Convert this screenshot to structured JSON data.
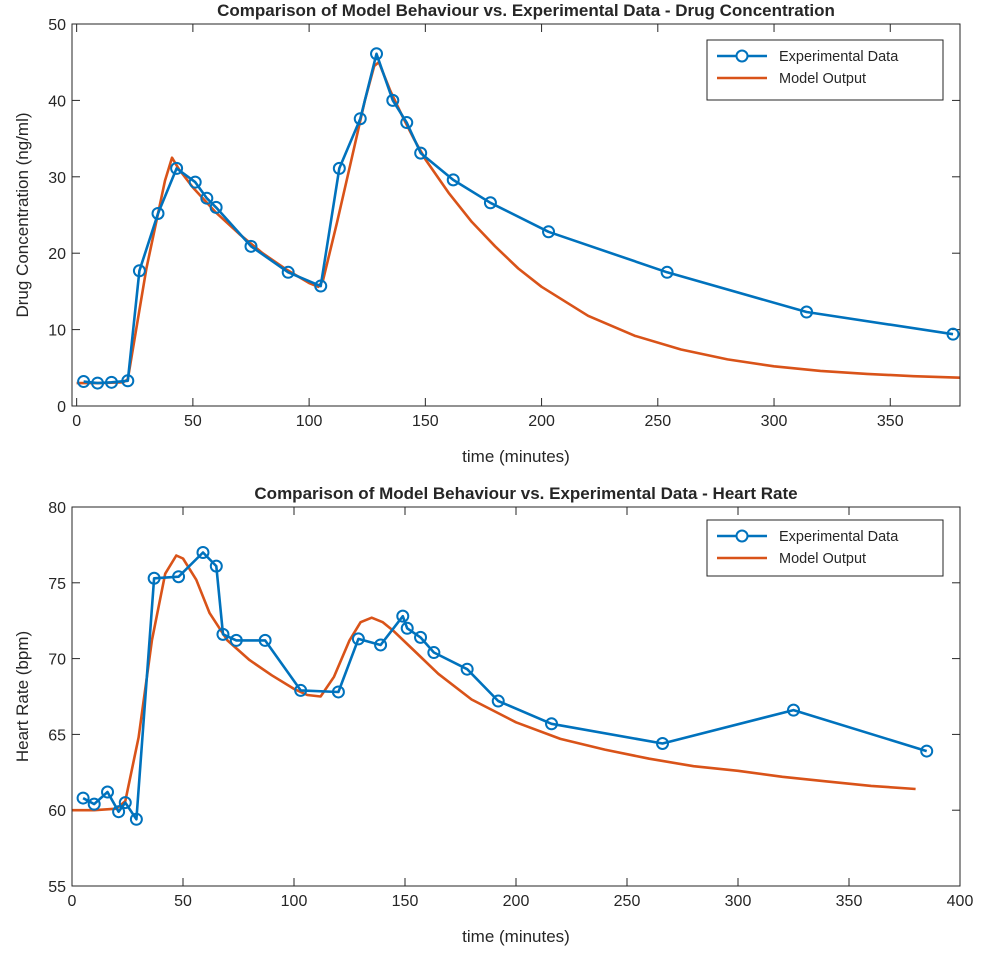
{
  "chart_data": [
    {
      "type": "line",
      "title": "Comparison of Model Behaviour vs. Experimental Data - Drug Concentration",
      "xlabel": "time (minutes)",
      "ylabel": "Drug Concentration (ng/ml)",
      "xlim": [
        -2,
        380
      ],
      "ylim": [
        0,
        50
      ],
      "xticks": [
        0,
        50,
        100,
        150,
        200,
        250,
        300,
        350
      ],
      "yticks": [
        0,
        10,
        20,
        30,
        40,
        50
      ],
      "grid": false,
      "legend_position": "top-right",
      "series": [
        {
          "name": "Experimental Data",
          "color": "#0072BD",
          "marker": "circle",
          "x": [
            3,
            9,
            15,
            22,
            27,
            35,
            43,
            51,
            56,
            60,
            75,
            91,
            105,
            113,
            122,
            129,
            136,
            142,
            148,
            162,
            178,
            203,
            254,
            314,
            377
          ],
          "y": [
            3.2,
            3.0,
            3.1,
            3.3,
            17.7,
            25.2,
            31.1,
            29.3,
            27.2,
            26.0,
            20.9,
            17.5,
            15.7,
            31.1,
            37.6,
            46.1,
            40.0,
            37.1,
            33.1,
            29.6,
            26.6,
            22.8,
            17.5,
            12.3,
            9.4
          ]
        },
        {
          "name": "Model Output",
          "color": "#D95319",
          "marker": "none",
          "x": [
            0,
            10,
            20,
            22,
            30,
            38,
            41,
            44,
            50,
            60,
            70,
            80,
            90,
            100,
            104,
            106,
            112,
            118,
            124,
            128,
            130,
            135,
            140,
            145,
            150,
            160,
            170,
            180,
            190,
            200,
            220,
            240,
            260,
            280,
            300,
            320,
            340,
            360,
            380
          ],
          "y": [
            3.0,
            3.0,
            3.1,
            3.5,
            18,
            29.5,
            32.5,
            31.0,
            28.6,
            25.3,
            22.5,
            20.0,
            17.9,
            16.1,
            15.6,
            16.5,
            24,
            32,
            40,
            44.5,
            45.0,
            41.2,
            38,
            35,
            32.3,
            27.9,
            24.1,
            20.9,
            18.0,
            15.6,
            11.8,
            9.2,
            7.4,
            6.1,
            5.2,
            4.6,
            4.2,
            3.9,
            3.7
          ]
        }
      ]
    },
    {
      "type": "line",
      "title": "Comparison of Model Behaviour vs. Experimental Data - Heart Rate",
      "xlabel": "time (minutes)",
      "ylabel": "Heart Rate (bpm)",
      "xlim": [
        0,
        400
      ],
      "ylim": [
        55,
        80
      ],
      "xticks": [
        0,
        50,
        100,
        150,
        200,
        250,
        300,
        350,
        400
      ],
      "yticks": [
        55,
        60,
        65,
        70,
        75,
        80
      ],
      "grid": false,
      "legend_position": "top-right",
      "series": [
        {
          "name": "Experimental Data",
          "color": "#0072BD",
          "marker": "circle",
          "x": [
            5,
            10,
            16,
            21,
            24,
            29,
            37,
            48,
            59,
            65,
            68,
            74,
            87,
            103,
            120,
            129,
            139,
            149,
            151,
            157,
            163,
            178,
            192,
            216,
            266,
            325,
            385
          ],
          "y": [
            60.8,
            60.4,
            61.2,
            59.9,
            60.5,
            59.4,
            75.3,
            75.4,
            77.0,
            76.1,
            71.6,
            71.2,
            71.2,
            67.9,
            67.8,
            71.3,
            70.9,
            72.8,
            72.0,
            71.4,
            70.4,
            69.3,
            67.2,
            65.7,
            64.4,
            66.6,
            63.9
          ]
        },
        {
          "name": "Model Output",
          "color": "#D95319",
          "marker": "none",
          "x": [
            0,
            10,
            20,
            24,
            30,
            36,
            42,
            47,
            50,
            56,
            62,
            70,
            80,
            90,
            100,
            106,
            112,
            118,
            125,
            130,
            135,
            140,
            145,
            155,
            165,
            180,
            200,
            220,
            240,
            260,
            280,
            300,
            320,
            340,
            360,
            380
          ],
          "y": [
            60.0,
            60.0,
            60.1,
            60.6,
            64.8,
            71.2,
            75.6,
            76.8,
            76.6,
            75.2,
            73.0,
            71.2,
            69.9,
            68.9,
            68.0,
            67.6,
            67.5,
            68.8,
            71.2,
            72.4,
            72.7,
            72.4,
            71.8,
            70.4,
            69.0,
            67.3,
            65.8,
            64.7,
            64.0,
            63.4,
            62.9,
            62.6,
            62.2,
            61.9,
            61.6,
            61.4
          ]
        }
      ]
    }
  ]
}
